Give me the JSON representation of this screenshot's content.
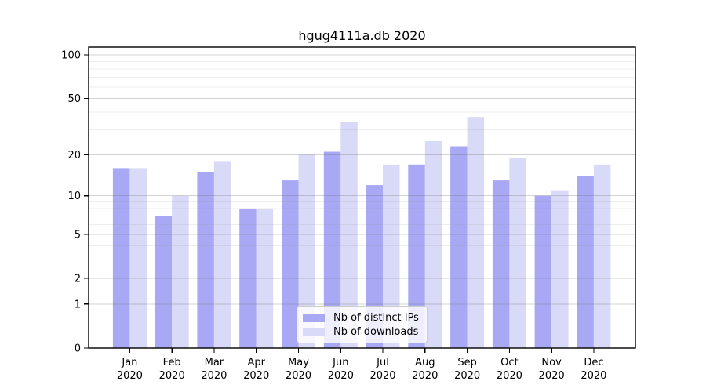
{
  "title": "hgug4111a.db 2020",
  "chart_data": {
    "type": "bar",
    "title": "hgug4111a.db 2020",
    "categories": [
      "Jan",
      "Feb",
      "Mar",
      "Apr",
      "May",
      "Jun",
      "Jul",
      "Aug",
      "Sep",
      "Oct",
      "Nov",
      "Dec"
    ],
    "year_label": "2020",
    "series": [
      {
        "name": "Nb of distinct IPs",
        "color": "#a8a8f4",
        "values": [
          16,
          7,
          15,
          8,
          13,
          21,
          12,
          17,
          23,
          13,
          10,
          14
        ]
      },
      {
        "name": "Nb of downloads",
        "color": "#d9d9f8",
        "values": [
          16,
          10,
          18,
          8,
          20,
          34,
          17,
          25,
          37,
          19,
          11,
          17
        ]
      }
    ],
    "yscale": "log1p",
    "ylim": [
      0,
      100
    ],
    "yticks": [
      0,
      1,
      2,
      5,
      10,
      20,
      50,
      100
    ],
    "minor_gridlines": [
      3,
      4,
      6,
      7,
      8,
      9,
      30,
      40,
      60,
      70,
      80,
      90
    ],
    "grid": true,
    "legend_position": "lower center",
    "colors": {
      "axis": "#000000",
      "major_grid": "rgba(110,110,110,0.30)",
      "minor_grid": "rgba(150,150,150,0.16)"
    }
  }
}
